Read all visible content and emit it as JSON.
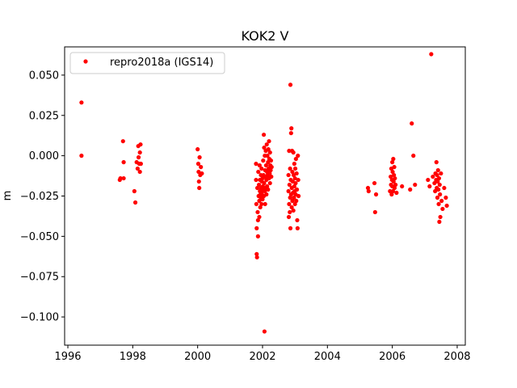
{
  "chart_data": {
    "type": "scatter",
    "title": "KOK2 V",
    "xlabel": "",
    "ylabel": "m",
    "xlim": [
      1995.9,
      2008.25
    ],
    "ylim": [
      -0.1175,
      0.0675
    ],
    "xticks": [
      1996,
      1998,
      2000,
      2002,
      2004,
      2006,
      2008
    ],
    "xtick_labels": [
      "1996",
      "1998",
      "2000",
      "2002",
      "2004",
      "2006",
      "2008"
    ],
    "yticks": [
      0.05,
      0.025,
      0.0,
      -0.025,
      -0.05,
      -0.075,
      -0.1
    ],
    "ytick_labels": [
      "0.050",
      "0.025",
      "0.000",
      "−0.025",
      "−0.050",
      "−0.075",
      "−0.100"
    ],
    "grid": false,
    "legend_position": "top-left",
    "color": "#ff0000",
    "series": [
      {
        "name": "repro2018a (IGS14)",
        "marker": "circle",
        "points": [
          [
            1996.42,
            0.033
          ],
          [
            1996.42,
            0.0
          ],
          [
            1997.6,
            -0.015
          ],
          [
            1997.62,
            -0.014
          ],
          [
            1997.7,
            0.009
          ],
          [
            1997.72,
            -0.004
          ],
          [
            1997.72,
            -0.014
          ],
          [
            1998.05,
            -0.022
          ],
          [
            1998.08,
            -0.029
          ],
          [
            1998.12,
            -0.004
          ],
          [
            1998.15,
            -0.008
          ],
          [
            1998.17,
            0.006
          ],
          [
            1998.18,
            -0.001
          ],
          [
            1998.2,
            -0.005
          ],
          [
            1998.22,
            0.002
          ],
          [
            1998.22,
            -0.01
          ],
          [
            1998.24,
            0.007
          ],
          [
            1998.25,
            -0.005
          ],
          [
            2000.0,
            0.004
          ],
          [
            2000.02,
            -0.005
          ],
          [
            2000.03,
            -0.01
          ],
          [
            2000.04,
            -0.016
          ],
          [
            2000.05,
            -0.02
          ],
          [
            2000.06,
            -0.001
          ],
          [
            2000.08,
            -0.012
          ],
          [
            2000.1,
            -0.007
          ],
          [
            2000.13,
            -0.011
          ],
          [
            2001.8,
            -0.005
          ],
          [
            2001.8,
            -0.015
          ],
          [
            2001.81,
            -0.03
          ],
          [
            2001.82,
            -0.045
          ],
          [
            2001.82,
            -0.061
          ],
          [
            2001.83,
            -0.063
          ],
          [
            2001.84,
            -0.02
          ],
          [
            2001.85,
            -0.035
          ],
          [
            2001.86,
            -0.04
          ],
          [
            2001.86,
            -0.05
          ],
          [
            2001.87,
            -0.01
          ],
          [
            2001.88,
            -0.025
          ],
          [
            2001.89,
            -0.018
          ],
          [
            2001.9,
            -0.028
          ],
          [
            2001.9,
            -0.038
          ],
          [
            2001.91,
            -0.006
          ],
          [
            2001.92,
            -0.022
          ],
          [
            2001.92,
            -0.015
          ],
          [
            2001.93,
            -0.032
          ],
          [
            2001.94,
            -0.024
          ],
          [
            2001.95,
            -0.012
          ],
          [
            2001.95,
            -0.026
          ],
          [
            2001.96,
            -0.02
          ],
          [
            2001.97,
            -0.008
          ],
          [
            2001.97,
            -0.03
          ],
          [
            2001.98,
            -0.016
          ],
          [
            2001.98,
            -0.024
          ],
          [
            2001.99,
            -0.022
          ],
          [
            2002.0,
            -0.014
          ],
          [
            2002.0,
            -0.027
          ],
          [
            2002.01,
            -0.019
          ],
          [
            2002.02,
            -0.021
          ],
          [
            2002.02,
            -0.003
          ],
          [
            2002.03,
            -0.012
          ],
          [
            2002.04,
            0.013
          ],
          [
            2002.04,
            -0.025
          ],
          [
            2002.05,
            0.005
          ],
          [
            2002.05,
            -0.017
          ],
          [
            2002.06,
            -0.109
          ],
          [
            2002.07,
            0.0
          ],
          [
            2002.07,
            -0.022
          ],
          [
            2002.08,
            -0.009
          ],
          [
            2002.08,
            -0.03
          ],
          [
            2002.09,
            -0.013
          ],
          [
            2002.1,
            0.003
          ],
          [
            2002.1,
            -0.02
          ],
          [
            2002.11,
            -0.006
          ],
          [
            2002.12,
            -0.024
          ],
          [
            2002.12,
            -0.015
          ],
          [
            2002.13,
            0.007
          ],
          [
            2002.14,
            -0.01
          ],
          [
            2002.14,
            -0.019
          ],
          [
            2002.15,
            0.0
          ],
          [
            2002.16,
            -0.012
          ],
          [
            2002.17,
            -0.004
          ],
          [
            2002.17,
            -0.021
          ],
          [
            2002.18,
            0.004
          ],
          [
            2002.19,
            -0.008
          ],
          [
            2002.2,
            0.009
          ],
          [
            2002.2,
            -0.014
          ],
          [
            2002.21,
            -0.002
          ],
          [
            2002.22,
            -0.011
          ],
          [
            2002.23,
            0.002
          ],
          [
            2002.23,
            -0.017
          ],
          [
            2002.24,
            -0.006
          ],
          [
            2002.25,
            -0.009
          ],
          [
            2002.26,
            -0.003
          ],
          [
            2002.27,
            -0.013
          ],
          [
            2002.28,
            -0.007
          ],
          [
            2002.8,
            -0.012
          ],
          [
            2002.8,
            -0.022
          ],
          [
            2002.81,
            -0.038
          ],
          [
            2002.82,
            0.003
          ],
          [
            2002.82,
            -0.03
          ],
          [
            2002.83,
            -0.018
          ],
          [
            2002.84,
            -0.035
          ],
          [
            2002.85,
            -0.008
          ],
          [
            2002.85,
            -0.026
          ],
          [
            2002.86,
            0.044
          ],
          [
            2002.86,
            -0.045
          ],
          [
            2002.87,
            -0.015
          ],
          [
            2002.88,
            0.014
          ],
          [
            2002.88,
            -0.024
          ],
          [
            2002.89,
            0.017
          ],
          [
            2002.9,
            -0.02
          ],
          [
            2002.9,
            -0.032
          ],
          [
            2002.91,
            0.003
          ],
          [
            2002.92,
            -0.01
          ],
          [
            2002.92,
            -0.028
          ],
          [
            2002.93,
            -0.016
          ],
          [
            2002.94,
            -0.023
          ],
          [
            2002.95,
            0.002
          ],
          [
            2002.95,
            -0.034
          ],
          [
            2002.96,
            -0.012
          ],
          [
            2002.97,
            -0.026
          ],
          [
            2002.98,
            -0.005
          ],
          [
            2002.98,
            -0.019
          ],
          [
            2002.99,
            -0.022
          ],
          [
            2003.0,
            -0.014
          ],
          [
            2003.0,
            -0.03
          ],
          [
            2003.01,
            -0.008
          ],
          [
            2003.02,
            -0.024
          ],
          [
            2003.02,
            -0.017
          ],
          [
            2003.03,
            -0.002
          ],
          [
            2003.04,
            -0.028
          ],
          [
            2003.05,
            -0.011
          ],
          [
            2003.06,
            -0.021
          ],
          [
            2003.07,
            -0.04
          ],
          [
            2003.08,
            -0.045
          ],
          [
            2003.09,
            0.0
          ],
          [
            2003.1,
            -0.015
          ],
          [
            2003.11,
            -0.025
          ],
          [
            2005.25,
            -0.02
          ],
          [
            2005.27,
            -0.022
          ],
          [
            2005.45,
            -0.017
          ],
          [
            2005.47,
            -0.035
          ],
          [
            2005.5,
            -0.024
          ],
          [
            2005.93,
            -0.022
          ],
          [
            2005.95,
            -0.013
          ],
          [
            2005.96,
            -0.018
          ],
          [
            2005.97,
            -0.008
          ],
          [
            2005.98,
            -0.024
          ],
          [
            2005.99,
            -0.015
          ],
          [
            2006.0,
            -0.004
          ],
          [
            2006.0,
            -0.019
          ],
          [
            2006.01,
            -0.01
          ],
          [
            2006.02,
            -0.022
          ],
          [
            2006.03,
            -0.002
          ],
          [
            2006.04,
            -0.016
          ],
          [
            2006.05,
            -0.012
          ],
          [
            2006.06,
            -0.007
          ],
          [
            2006.07,
            -0.02
          ],
          [
            2006.08,
            -0.014
          ],
          [
            2006.1,
            -0.018
          ],
          [
            2006.13,
            -0.023
          ],
          [
            2006.3,
            -0.019
          ],
          [
            2006.55,
            -0.021
          ],
          [
            2006.6,
            0.02
          ],
          [
            2006.65,
            0.0
          ],
          [
            2006.7,
            -0.018
          ],
          [
            2007.1,
            -0.015
          ],
          [
            2007.15,
            -0.019
          ],
          [
            2007.2,
            0.063
          ],
          [
            2007.25,
            -0.013
          ],
          [
            2007.3,
            -0.017
          ],
          [
            2007.32,
            -0.022
          ],
          [
            2007.33,
            -0.011
          ],
          [
            2007.35,
            -0.015
          ],
          [
            2007.36,
            -0.004
          ],
          [
            2007.37,
            -0.02
          ],
          [
            2007.38,
            -0.012
          ],
          [
            2007.39,
            -0.026
          ],
          [
            2007.4,
            -0.016
          ],
          [
            2007.41,
            -0.009
          ],
          [
            2007.42,
            -0.021
          ],
          [
            2007.43,
            -0.03
          ],
          [
            2007.44,
            -0.014
          ],
          [
            2007.45,
            -0.041
          ],
          [
            2007.46,
            -0.018
          ],
          [
            2007.47,
            -0.024
          ],
          [
            2007.48,
            -0.038
          ],
          [
            2007.5,
            -0.011
          ],
          [
            2007.52,
            -0.028
          ],
          [
            2007.55,
            -0.033
          ],
          [
            2007.6,
            -0.02
          ],
          [
            2007.65,
            -0.026
          ],
          [
            2007.68,
            -0.031
          ]
        ]
      }
    ]
  }
}
